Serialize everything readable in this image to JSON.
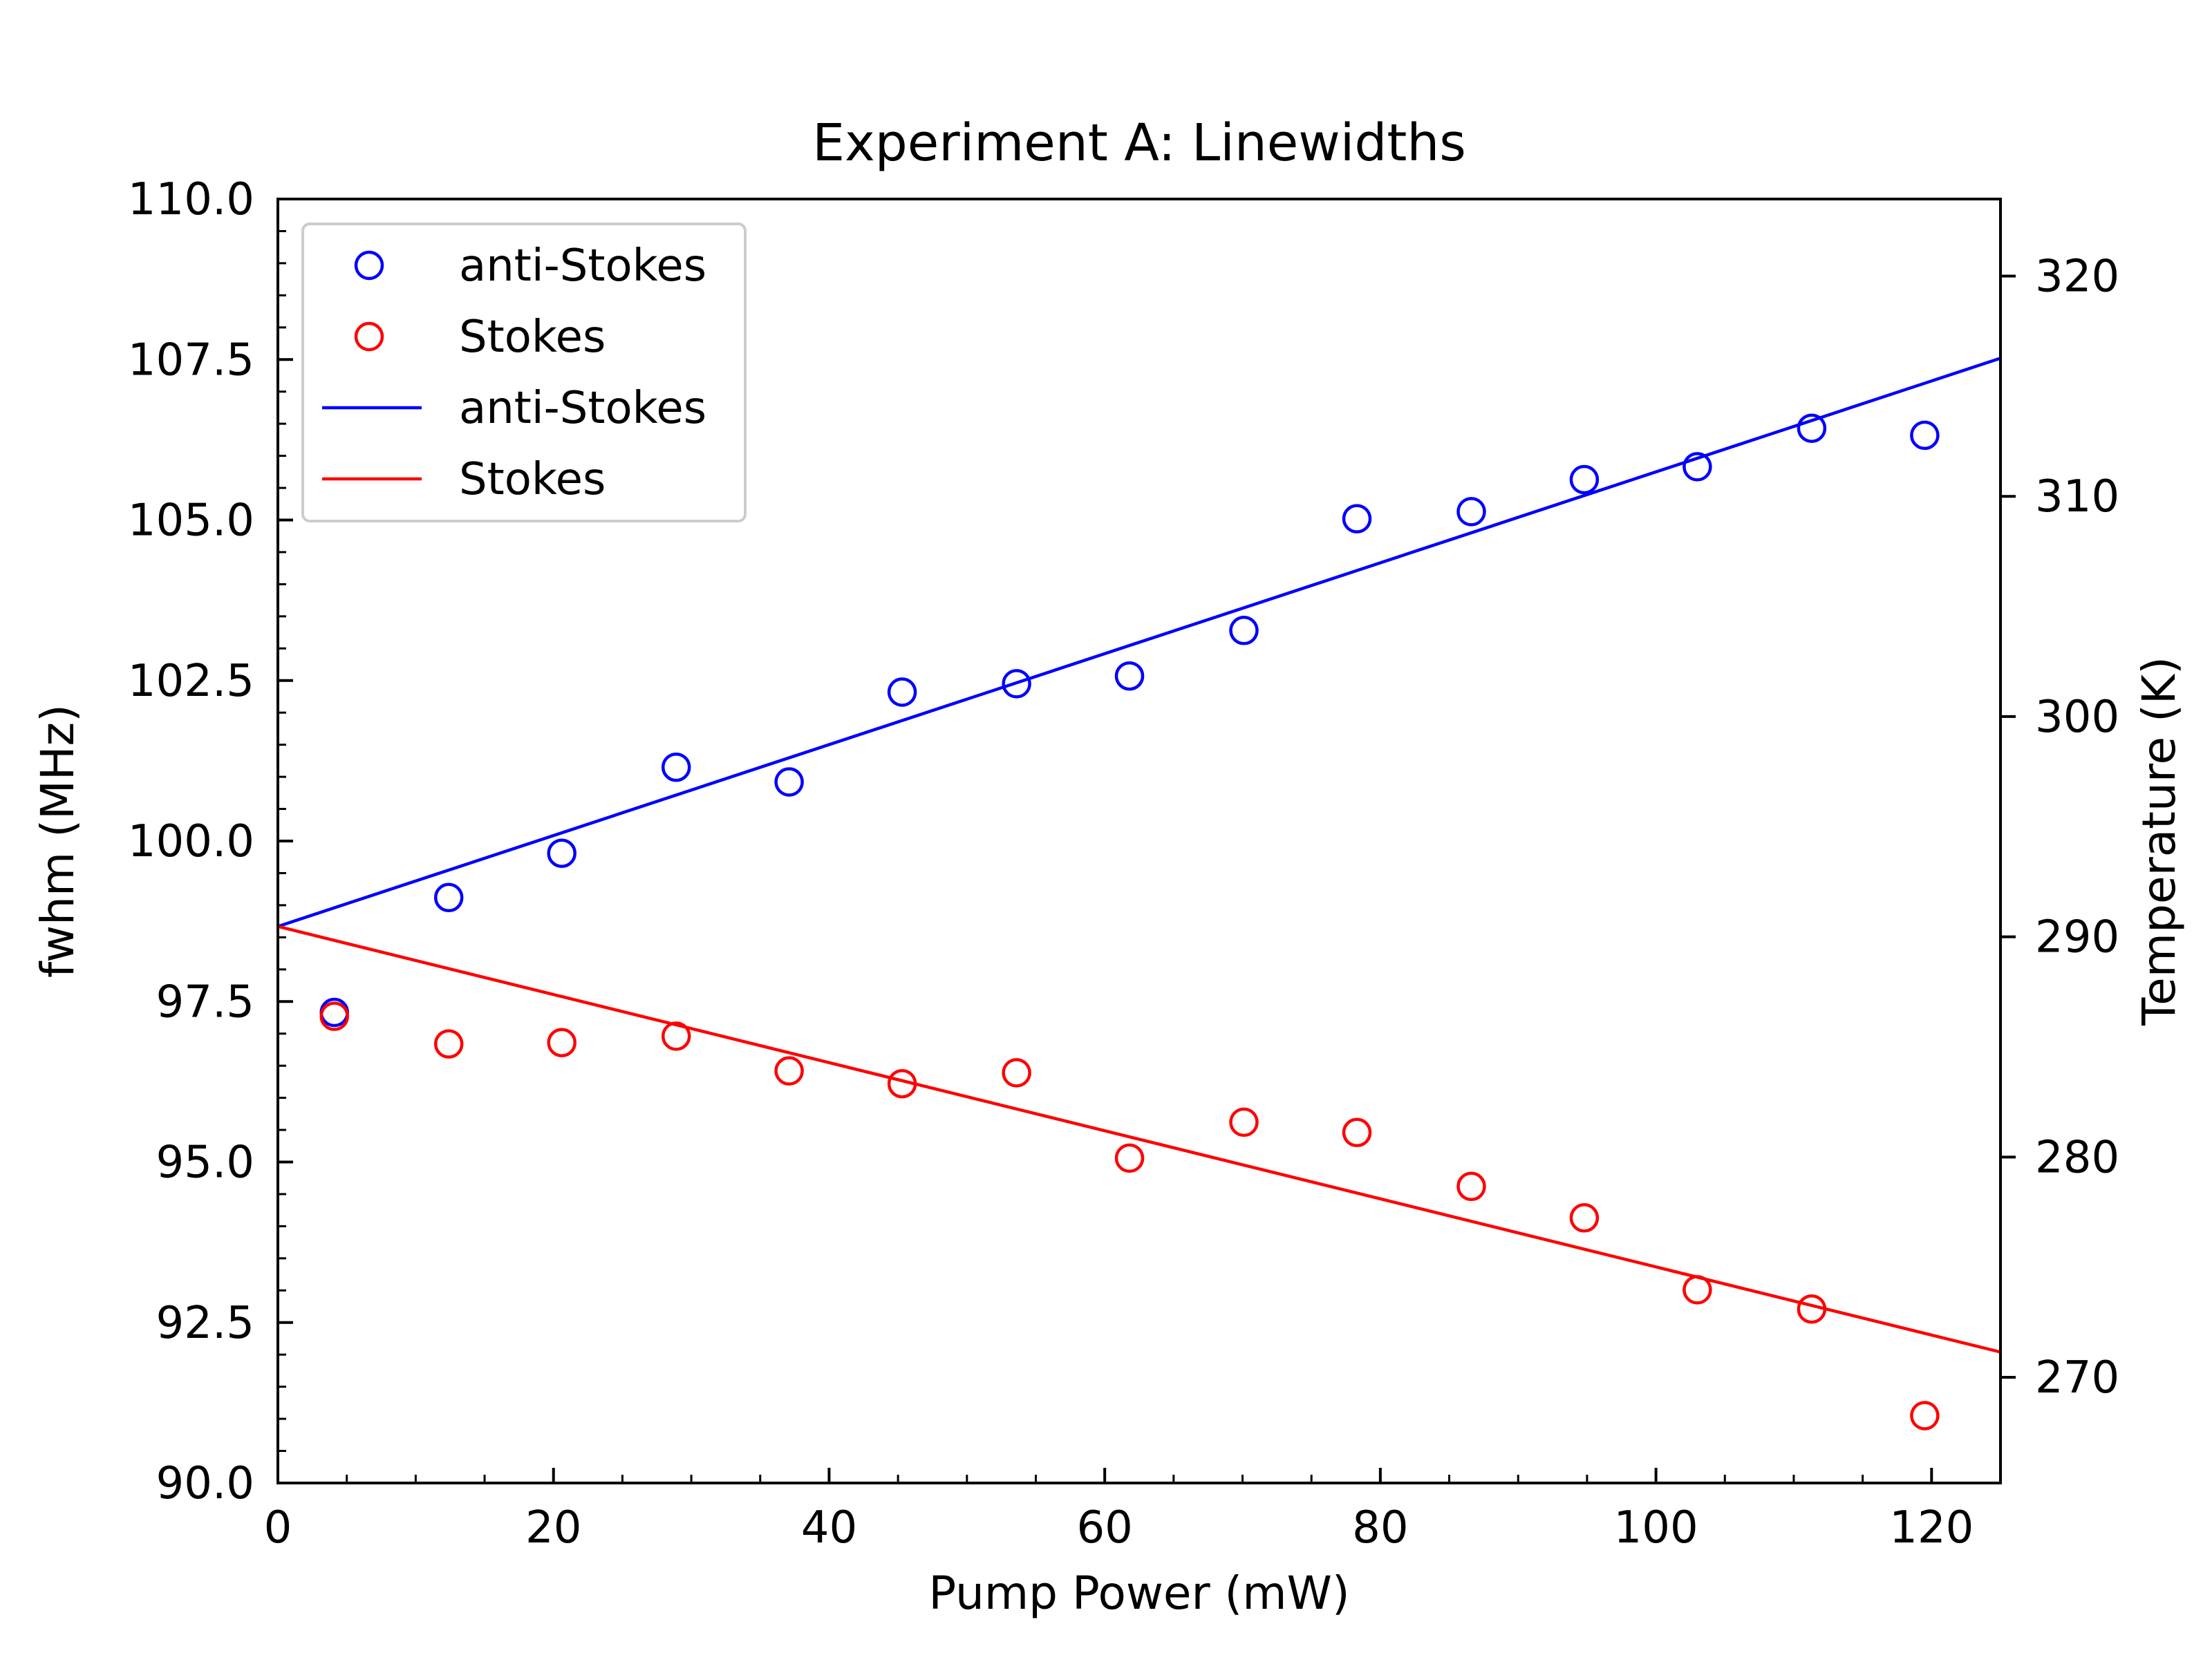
{
  "chart_data": {
    "type": "scatter",
    "title": "Experiment A: Linewidths",
    "xlabel": "Pump Power (mW)",
    "ylabel": "fwhm (MHz)",
    "y2label": "Temperature (K)",
    "xlim": [
      0,
      125
    ],
    "ylim": [
      90,
      110
    ],
    "y2lim": [
      265.2,
      323.5
    ],
    "xticks": [
      0,
      20,
      40,
      60,
      80,
      100,
      120
    ],
    "yticks": [
      90.0,
      92.5,
      95.0,
      97.5,
      100.0,
      102.5,
      105.0,
      107.5,
      110.0
    ],
    "y2ticks": [
      270,
      280,
      290,
      300,
      310,
      320
    ],
    "xtick_labels": [
      "0",
      "20",
      "40",
      "60",
      "80",
      "100",
      "120"
    ],
    "ytick_labels": [
      "90.0",
      "92.5",
      "95.0",
      "97.5",
      "100.0",
      "102.5",
      "105.0",
      "107.5",
      "110.0"
    ],
    "y2tick_labels": [
      "270",
      "280",
      "290",
      "300",
      "310",
      "320"
    ],
    "grid": false,
    "legend_position": "upper-left",
    "series": [
      {
        "name": "anti-Stokes",
        "kind": "scatter",
        "color": "#0000ff",
        "x": [
          4.1,
          12.4,
          20.6,
          28.9,
          37.1,
          45.3,
          53.6,
          61.8,
          70.1,
          78.3,
          86.6,
          94.8,
          103.0,
          111.3,
          119.5
        ],
        "y": [
          97.33,
          99.12,
          99.81,
          101.15,
          100.92,
          102.32,
          102.45,
          102.57,
          103.28,
          105.02,
          105.13,
          105.63,
          105.83,
          106.43,
          106.32
        ]
      },
      {
        "name": "Stokes",
        "kind": "scatter",
        "color": "#ff0000",
        "x": [
          4.1,
          12.4,
          20.6,
          28.9,
          37.1,
          45.3,
          53.6,
          61.8,
          70.1,
          78.3,
          86.6,
          94.8,
          103.0,
          111.3,
          119.5
        ],
        "y": [
          97.27,
          96.84,
          96.86,
          96.96,
          96.42,
          96.22,
          96.39,
          95.06,
          95.62,
          95.46,
          94.62,
          94.13,
          93.01,
          92.71,
          91.05
        ]
      },
      {
        "name": "anti-Stokes",
        "kind": "line",
        "color": "#0000ff",
        "x": [
          0,
          125
        ],
        "y": [
          98.67,
          107.52
        ]
      },
      {
        "name": "Stokes",
        "kind": "line",
        "color": "#ff0000",
        "x": [
          0,
          125
        ],
        "y": [
          98.67,
          92.04
        ]
      }
    ]
  }
}
